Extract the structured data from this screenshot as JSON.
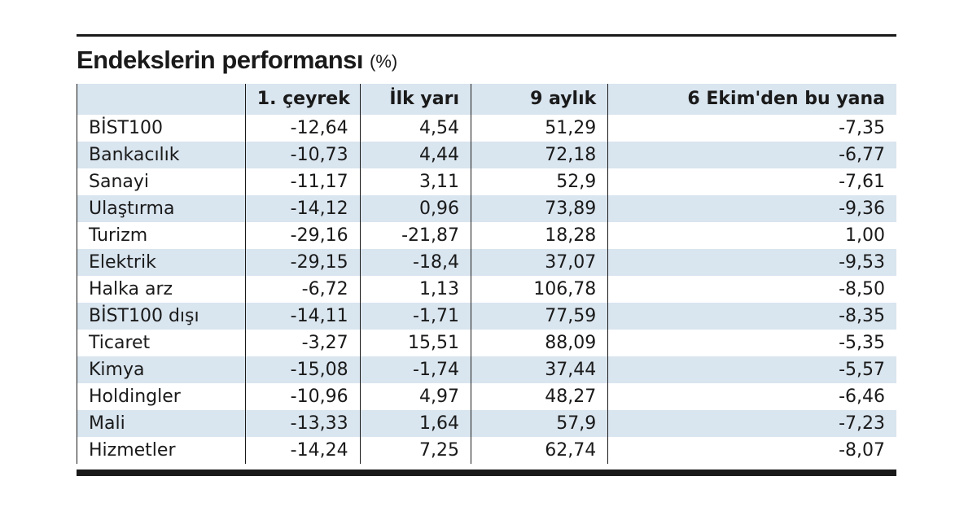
{
  "title": "Endekslerin performansı",
  "title_unit": "(%)",
  "columns": [
    "",
    "1. çeyrek",
    "İlk yarı",
    "9 aylık",
    "6 Ekim'den bu yana"
  ],
  "rows": [
    {
      "name": "BİST100",
      "values": [
        "-12,64",
        "4,54",
        "51,29",
        "-7,35"
      ]
    },
    {
      "name": "Bankacılık",
      "values": [
        "-10,73",
        "4,44",
        "72,18",
        "-6,77"
      ]
    },
    {
      "name": "Sanayi",
      "values": [
        "-11,17",
        "3,11",
        "52,9",
        "-7,61"
      ]
    },
    {
      "name": "Ulaştırma",
      "values": [
        "-14,12",
        "0,96",
        "73,89",
        "-9,36"
      ]
    },
    {
      "name": "Turizm",
      "values": [
        "-29,16",
        "-21,87",
        "18,28",
        "1,00"
      ]
    },
    {
      "name": "Elektrik",
      "values": [
        "-29,15",
        "-18,4",
        "37,07",
        "-9,53"
      ]
    },
    {
      "name": "Halka arz",
      "values": [
        "-6,72",
        "1,13",
        "106,78",
        "-8,50"
      ]
    },
    {
      "name": "BİST100 dışı",
      "values": [
        "-14,11",
        "-1,71",
        "77,59",
        "-8,35"
      ]
    },
    {
      "name": "Ticaret",
      "values": [
        "-3,27",
        "15,51",
        "88,09",
        "-5,35"
      ]
    },
    {
      "name": "Kimya",
      "values": [
        "-15,08",
        "-1,74",
        "37,44",
        "-5,57"
      ]
    },
    {
      "name": "Holdingler",
      "values": [
        "-10,96",
        "4,97",
        "48,27",
        "-6,46"
      ]
    },
    {
      "name": "Mali",
      "values": [
        "-13,33",
        "1,64",
        "57,9",
        "-7,23"
      ]
    },
    {
      "name": "Hizmetler",
      "values": [
        "-14,24",
        "7,25",
        "62,74",
        "-8,07"
      ]
    }
  ],
  "colors": {
    "row_shade": "#d9e5ef",
    "rule": "#1a1a1a"
  }
}
